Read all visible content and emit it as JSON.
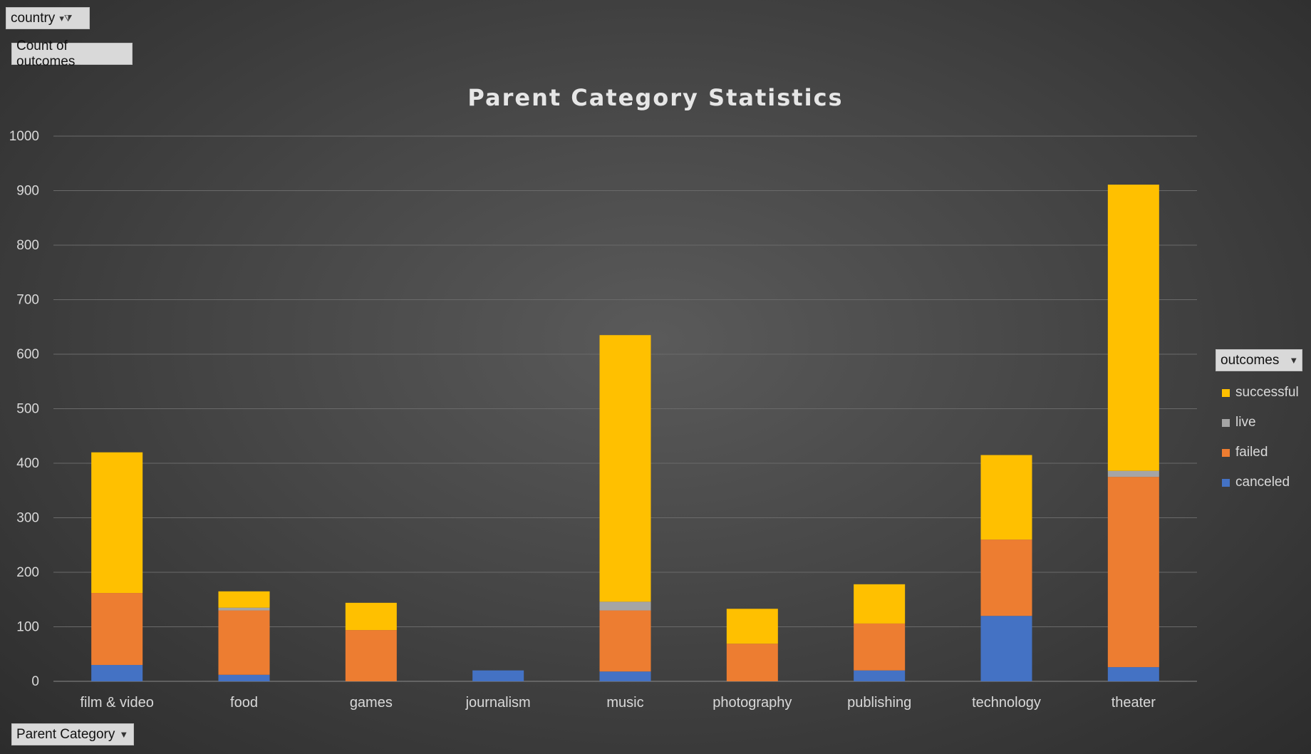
{
  "filters": {
    "country_label": "country",
    "filter_icon": "funnel-icon"
  },
  "value_field": {
    "label": "Count of outcomes"
  },
  "axis_field": {
    "label": "Parent Category",
    "icon": "chevron-down-icon"
  },
  "legend_field": {
    "label": "outcomes",
    "icon": "chevron-down-icon"
  },
  "colors": {
    "successful": "#ffc000",
    "live": "#a5a5a5",
    "failed": "#ed7d31",
    "canceled": "#4472c4",
    "gridline": "#6a6a6a",
    "text": "#d9d9d9"
  },
  "chart_data": {
    "type": "bar",
    "stacked": true,
    "title": "Parent Category Statistics",
    "xlabel": "",
    "ylabel": "",
    "ylim": [
      0,
      1000
    ],
    "yticks": [
      0,
      100,
      200,
      300,
      400,
      500,
      600,
      700,
      800,
      900,
      1000
    ],
    "categories": [
      "film & video",
      "food",
      "games",
      "journalism",
      "music",
      "photography",
      "publishing",
      "technology",
      "theater"
    ],
    "series": [
      {
        "name": "canceled",
        "values": [
          30,
          12,
          0,
          20,
          18,
          0,
          20,
          120,
          26
        ]
      },
      {
        "name": "failed",
        "values": [
          132,
          118,
          94,
          0,
          112,
          69,
          86,
          140,
          349
        ]
      },
      {
        "name": "live",
        "values": [
          0,
          5,
          0,
          0,
          16,
          0,
          0,
          0,
          11
        ]
      },
      {
        "name": "successful",
        "values": [
          258,
          30,
          50,
          0,
          489,
          64,
          72,
          155,
          525
        ]
      }
    ],
    "legend_order": [
      "successful",
      "live",
      "failed",
      "canceled"
    ]
  }
}
